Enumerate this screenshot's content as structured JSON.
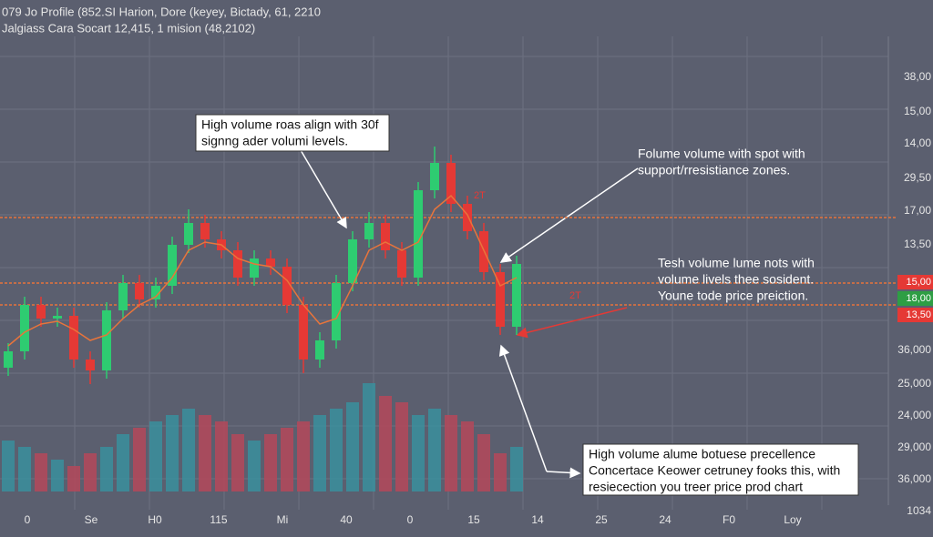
{
  "chart_data": {
    "type": "candlestick",
    "header": [
      "079 Jo Profile (852.SI Harion, Dore (keyey, Bictady, 61, 2210",
      "Jalgiass Cara Socart 12,415, 1 mision (48,2102)"
    ],
    "x_labels": [
      "0",
      "Se",
      "H0",
      "115",
      "Mi",
      "40",
      "0",
      "15",
      "14",
      "25",
      "24",
      "F0",
      "Loy"
    ],
    "y_labels": [
      "38,00",
      "15,00",
      "14,00",
      "29,50",
      "17,00",
      "13,50",
      "36,000",
      "25,000",
      "24,000",
      "29,000",
      "36,000",
      "1034"
    ],
    "price_tags": [
      {
        "label": "15,00",
        "color": "#e53935"
      },
      {
        "label": "18,00",
        "color": "#2e9e44"
      },
      {
        "label": "13,50",
        "color": "#e53935"
      }
    ],
    "ylim": [
      0,
      100
    ],
    "open": [
      12,
      18,
      35,
      30,
      31,
      15,
      11,
      33,
      43,
      37,
      42,
      57,
      65,
      59,
      55,
      45,
      52,
      49,
      35,
      15,
      22,
      43,
      59,
      65,
      55,
      45,
      77,
      87,
      72,
      62,
      47,
      27
    ],
    "high": [
      21,
      38,
      38,
      34,
      34,
      18,
      36,
      46,
      46,
      45,
      60,
      70,
      68,
      62,
      58,
      55,
      55,
      52,
      38,
      25,
      46,
      62,
      69,
      68,
      58,
      80,
      93,
      90,
      75,
      65,
      50,
      53
    ],
    "low": [
      9,
      15,
      27,
      27,
      12,
      6,
      8,
      30,
      34,
      34,
      39,
      54,
      56,
      52,
      42,
      42,
      46,
      32,
      10,
      12,
      19,
      40,
      56,
      52,
      42,
      42,
      74,
      69,
      59,
      44,
      24,
      24
    ],
    "close": [
      18,
      35,
      30,
      31,
      15,
      11,
      33,
      43,
      37,
      42,
      57,
      65,
      59,
      55,
      45,
      52,
      49,
      35,
      15,
      22,
      43,
      59,
      65,
      55,
      45,
      77,
      87,
      72,
      62,
      47,
      27,
      50
    ],
    "volume": [
      40,
      35,
      30,
      25,
      20,
      30,
      35,
      45,
      50,
      55,
      60,
      65,
      60,
      55,
      45,
      40,
      45,
      50,
      55,
      60,
      65,
      70,
      85,
      75,
      70,
      60,
      65,
      60,
      55,
      45,
      30,
      35
    ],
    "ma": {
      "color": "#e8743b",
      "values": [
        20,
        25,
        28,
        29,
        26,
        22,
        24,
        30,
        35,
        38,
        45,
        55,
        58,
        57,
        52,
        50,
        49,
        44,
        35,
        28,
        30,
        42,
        55,
        58,
        55,
        58,
        70,
        75,
        68,
        55,
        42,
        45
      ]
    },
    "up_color": "#2ecc71",
    "down_color": "#e53935",
    "volume_up_color": "#3a8f9e",
    "volume_down_color": "#b5485a",
    "levels": {
      "color": "#e8743b",
      "values": [
        67,
        43,
        35
      ]
    },
    "annotations": [
      {
        "lines": [
          "High volume roas align with 30f",
          "signng ader volumi levels."
        ],
        "boxed": true
      },
      {
        "lines": [
          "Folume volume with spot with",
          "support/rresistiance zones."
        ],
        "boxed": false
      },
      {
        "lines": [
          "Tesh volume lume nots with",
          "volume livels thee sosident.",
          "Youne  tode price preiction."
        ],
        "boxed": false
      },
      {
        "lines": [
          "High volume alume botuese precellence",
          "Concertace Keower cetruney fooks this, with",
          "resiecection you treer price prod chart"
        ],
        "boxed": true
      }
    ],
    "marks": [
      "2T",
      "2T"
    ],
    "grid": true
  }
}
